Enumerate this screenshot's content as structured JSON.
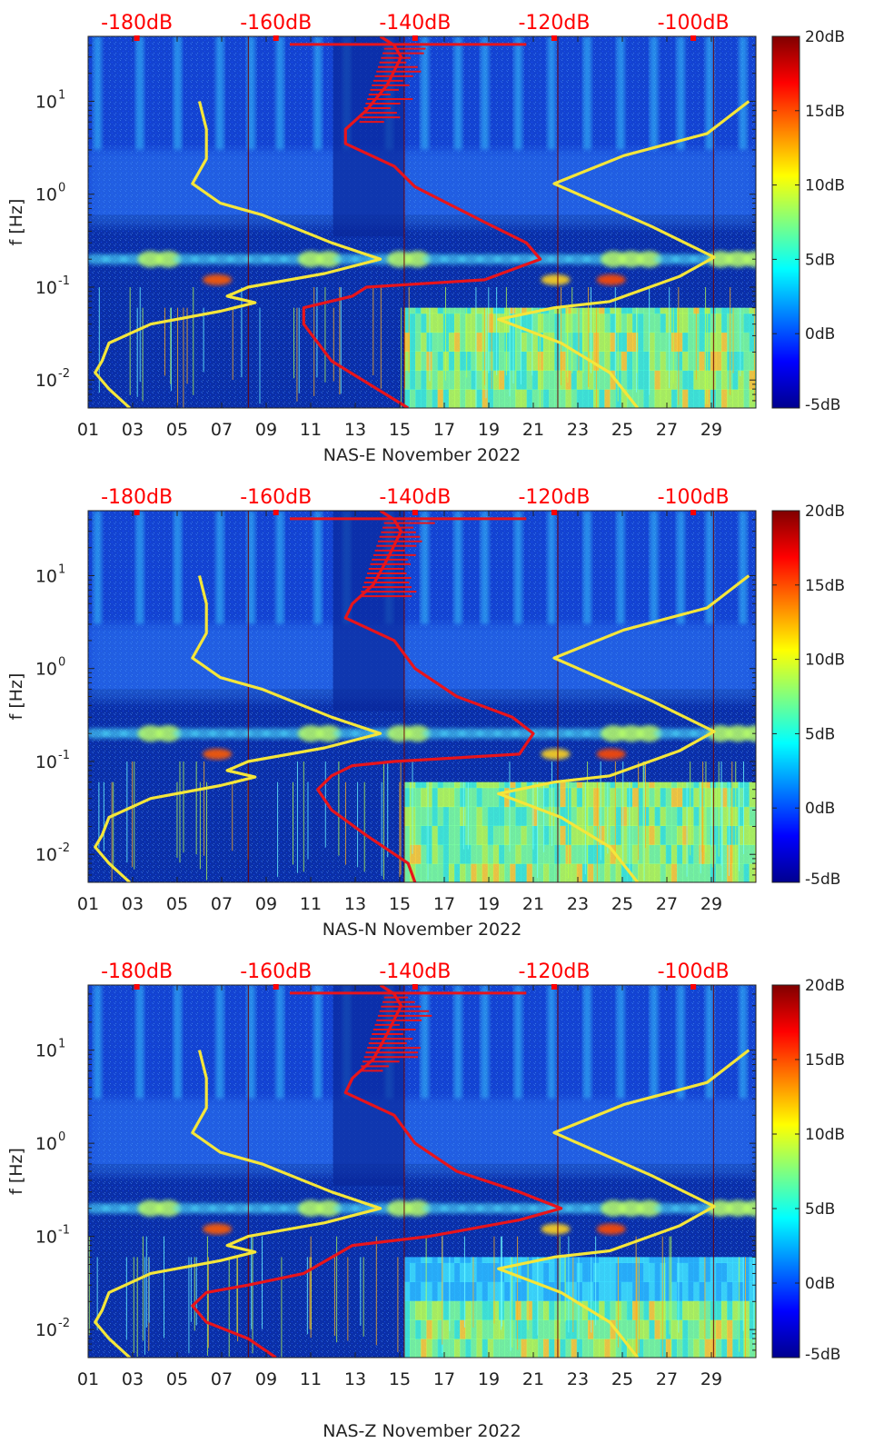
{
  "figure": {
    "colorbar": {
      "tick_labels": [
        "20dB",
        "15dB",
        "10dB",
        "5dB",
        "0dB",
        "-5dB"
      ],
      "range_db": [
        -5,
        20
      ],
      "colormap": "jet"
    },
    "colors": {
      "psd_curve": "#e8141b",
      "noise_model": "#f5e63a",
      "top_axis_text": "#ff0000",
      "background_field": "#0a2fa8"
    }
  },
  "chart_data": [
    {
      "type": "heatmap",
      "xlabel": "NAS-E November 2022",
      "ylabel": "f [Hz]",
      "x_tick_labels": [
        "01",
        "03",
        "05",
        "07",
        "09",
        "11",
        "13",
        "15",
        "17",
        "19",
        "21",
        "23",
        "25",
        "27",
        "29"
      ],
      "x_ticks_day": [
        1,
        3,
        5,
        7,
        9,
        11,
        13,
        15,
        17,
        19,
        21,
        23,
        25,
        27,
        29
      ],
      "xlim_day": [
        1,
        31
      ],
      "y_scale": "log",
      "ylim_hz": [
        0.005,
        50
      ],
      "y_tick_labels": [
        {
          "base": "10",
          "exp": "1",
          "hz": 10
        },
        {
          "base": "10",
          "exp": "0",
          "hz": 1
        },
        {
          "base": "10",
          "exp": "-1",
          "hz": 0.1
        },
        {
          "base": "10",
          "exp": "-2",
          "hz": 0.01
        }
      ],
      "top_axis_labels": [
        "-180dB",
        "-160dB",
        "-140dB",
        "-120dB",
        "-100dB"
      ],
      "top_axis_db": [
        -180,
        -160,
        -140,
        -120,
        -100
      ],
      "top_axis_range_db": [
        -187,
        -91
      ],
      "series": [
        {
          "kind": "model",
          "color": "#f5e63a",
          "points_db_hz": [
            [
              -181,
              0.005
            ],
            [
              -184,
              0.008
            ],
            [
              -186,
              0.012
            ],
            [
              -185,
              0.016
            ],
            [
              -184,
              0.025
            ],
            [
              -178,
              0.04
            ],
            [
              -168,
              0.055
            ],
            [
              -163,
              0.068
            ],
            [
              -167,
              0.08
            ],
            [
              -164,
              0.1
            ],
            [
              -153,
              0.14
            ],
            [
              -145,
              0.2
            ],
            [
              -152,
              0.3
            ],
            [
              -162,
              0.6
            ],
            [
              -168,
              0.8
            ],
            [
              -172,
              1.3
            ],
            [
              -170,
              2.4
            ],
            [
              -170,
              5
            ],
            [
              -171,
              10
            ]
          ]
        },
        {
          "kind": "model",
          "color": "#f5e63a",
          "points_db_hz": [
            [
              -108,
              0.005
            ],
            [
              -112,
              0.012
            ],
            [
              -119,
              0.025
            ],
            [
              -128,
              0.045
            ],
            [
              -120,
              0.06
            ],
            [
              -112,
              0.07
            ],
            [
              -102,
              0.13
            ],
            [
              -97,
              0.21
            ],
            [
              -106,
              0.45
            ],
            [
              -120,
              1.3
            ],
            [
              -110,
              2.6
            ],
            [
              -98,
              4.5
            ],
            [
              -92,
              10
            ]
          ]
        },
        {
          "kind": "psd",
          "color": "#e8141b",
          "points_db_hz": [
            [
              -141,
              0.005
            ],
            [
              -152,
              0.016
            ],
            [
              -156,
              0.04
            ],
            [
              -156,
              0.06
            ],
            [
              -149,
              0.08
            ],
            [
              -147,
              0.1
            ],
            [
              -130,
              0.12
            ],
            [
              -122,
              0.2
            ],
            [
              -124,
              0.3
            ],
            [
              -130,
              0.5
            ],
            [
              -140,
              1.2
            ],
            [
              -143,
              2.0
            ],
            [
              -150,
              3.5
            ],
            [
              -150,
              5
            ],
            [
              -147,
              8
            ],
            [
              -144,
              15
            ],
            [
              -142,
              30
            ],
            [
              -143,
              40
            ],
            [
              -145,
              50
            ]
          ]
        }
      ]
    },
    {
      "type": "heatmap",
      "xlabel": "NAS-N November 2022",
      "ylabel": "f [Hz]",
      "x_tick_labels": [
        "01",
        "03",
        "05",
        "07",
        "09",
        "11",
        "13",
        "15",
        "17",
        "19",
        "21",
        "23",
        "25",
        "27",
        "29"
      ],
      "x_ticks_day": [
        1,
        3,
        5,
        7,
        9,
        11,
        13,
        15,
        17,
        19,
        21,
        23,
        25,
        27,
        29
      ],
      "xlim_day": [
        1,
        31
      ],
      "y_scale": "log",
      "ylim_hz": [
        0.005,
        50
      ],
      "y_tick_labels": [
        {
          "base": "10",
          "exp": "1",
          "hz": 10
        },
        {
          "base": "10",
          "exp": "0",
          "hz": 1
        },
        {
          "base": "10",
          "exp": "-1",
          "hz": 0.1
        },
        {
          "base": "10",
          "exp": "-2",
          "hz": 0.01
        }
      ],
      "top_axis_labels": [
        "-180dB",
        "-160dB",
        "-140dB",
        "-120dB",
        "-100dB"
      ],
      "top_axis_db": [
        -180,
        -160,
        -140,
        -120,
        -100
      ],
      "top_axis_range_db": [
        -187,
        -91
      ],
      "series": [
        {
          "kind": "model",
          "color": "#f5e63a",
          "points_db_hz": [
            [
              -181,
              0.005
            ],
            [
              -184,
              0.008
            ],
            [
              -186,
              0.012
            ],
            [
              -185,
              0.016
            ],
            [
              -184,
              0.025
            ],
            [
              -178,
              0.04
            ],
            [
              -168,
              0.055
            ],
            [
              -163,
              0.068
            ],
            [
              -167,
              0.08
            ],
            [
              -164,
              0.1
            ],
            [
              -153,
              0.14
            ],
            [
              -145,
              0.2
            ],
            [
              -152,
              0.3
            ],
            [
              -162,
              0.6
            ],
            [
              -168,
              0.8
            ],
            [
              -172,
              1.3
            ],
            [
              -170,
              2.4
            ],
            [
              -170,
              5
            ],
            [
              -171,
              10
            ]
          ]
        },
        {
          "kind": "model",
          "color": "#f5e63a",
          "points_db_hz": [
            [
              -108,
              0.005
            ],
            [
              -112,
              0.012
            ],
            [
              -119,
              0.025
            ],
            [
              -128,
              0.045
            ],
            [
              -120,
              0.06
            ],
            [
              -112,
              0.07
            ],
            [
              -102,
              0.13
            ],
            [
              -97,
              0.21
            ],
            [
              -106,
              0.45
            ],
            [
              -120,
              1.3
            ],
            [
              -110,
              2.6
            ],
            [
              -98,
              4.5
            ],
            [
              -92,
              10
            ]
          ]
        },
        {
          "kind": "psd",
          "color": "#e8141b",
          "points_db_hz": [
            [
              -140,
              0.005
            ],
            [
              -141,
              0.008
            ],
            [
              -147,
              0.016
            ],
            [
              -152,
              0.03
            ],
            [
              -154,
              0.05
            ],
            [
              -152,
              0.07
            ],
            [
              -149,
              0.09
            ],
            [
              -143,
              0.1
            ],
            [
              -125,
              0.12
            ],
            [
              -123,
              0.2
            ],
            [
              -126,
              0.3
            ],
            [
              -134,
              0.5
            ],
            [
              -140,
              1.0
            ],
            [
              -143,
              2.0
            ],
            [
              -150,
              3.5
            ],
            [
              -149,
              5
            ],
            [
              -146,
              8
            ],
            [
              -144,
              15
            ],
            [
              -142,
              30
            ],
            [
              -143,
              40
            ],
            [
              -145,
              50
            ]
          ]
        }
      ]
    },
    {
      "type": "heatmap",
      "xlabel": "NAS-Z November 2022",
      "ylabel": "f [Hz]",
      "x_tick_labels": [
        "01",
        "03",
        "05",
        "07",
        "09",
        "11",
        "13",
        "15",
        "17",
        "19",
        "21",
        "23",
        "25",
        "27",
        "29"
      ],
      "x_ticks_day": [
        1,
        3,
        5,
        7,
        9,
        11,
        13,
        15,
        17,
        19,
        21,
        23,
        25,
        27,
        29
      ],
      "xlim_day": [
        1,
        31
      ],
      "y_scale": "log",
      "ylim_hz": [
        0.005,
        50
      ],
      "y_tick_labels": [
        {
          "base": "10",
          "exp": "1",
          "hz": 10
        },
        {
          "base": "10",
          "exp": "0",
          "hz": 1
        },
        {
          "base": "10",
          "exp": "-1",
          "hz": 0.1
        },
        {
          "base": "10",
          "exp": "-2",
          "hz": 0.01
        }
      ],
      "top_axis_labels": [
        "-180dB",
        "-160dB",
        "-140dB",
        "-120dB",
        "-100dB"
      ],
      "top_axis_db": [
        -180,
        -160,
        -140,
        -120,
        -100
      ],
      "top_axis_range_db": [
        -187,
        -91
      ],
      "series": [
        {
          "kind": "model",
          "color": "#f5e63a",
          "points_db_hz": [
            [
              -181,
              0.005
            ],
            [
              -184,
              0.008
            ],
            [
              -186,
              0.012
            ],
            [
              -185,
              0.016
            ],
            [
              -184,
              0.025
            ],
            [
              -178,
              0.04
            ],
            [
              -168,
              0.055
            ],
            [
              -163,
              0.068
            ],
            [
              -167,
              0.08
            ],
            [
              -164,
              0.1
            ],
            [
              -153,
              0.14
            ],
            [
              -145,
              0.2
            ],
            [
              -152,
              0.3
            ],
            [
              -162,
              0.6
            ],
            [
              -168,
              0.8
            ],
            [
              -172,
              1.3
            ],
            [
              -170,
              2.4
            ],
            [
              -170,
              5
            ],
            [
              -171,
              10
            ]
          ]
        },
        {
          "kind": "model",
          "color": "#f5e63a",
          "points_db_hz": [
            [
              -108,
              0.005
            ],
            [
              -112,
              0.012
            ],
            [
              -119,
              0.025
            ],
            [
              -128,
              0.045
            ],
            [
              -120,
              0.06
            ],
            [
              -112,
              0.07
            ],
            [
              -102,
              0.13
            ],
            [
              -97,
              0.21
            ],
            [
              -106,
              0.45
            ],
            [
              -120,
              1.3
            ],
            [
              -110,
              2.6
            ],
            [
              -98,
              4.5
            ],
            [
              -92,
              10
            ]
          ]
        },
        {
          "kind": "psd",
          "color": "#e8141b",
          "points_db_hz": [
            [
              -160,
              0.005
            ],
            [
              -164,
              0.008
            ],
            [
              -170,
              0.012
            ],
            [
              -172,
              0.018
            ],
            [
              -170,
              0.025
            ],
            [
              -164,
              0.03
            ],
            [
              -156,
              0.04
            ],
            [
              -149,
              0.08
            ],
            [
              -138,
              0.1
            ],
            [
              -125,
              0.15
            ],
            [
              -119,
              0.2
            ],
            [
              -125,
              0.3
            ],
            [
              -134,
              0.5
            ],
            [
              -140,
              1.0
            ],
            [
              -143,
              2.0
            ],
            [
              -150,
              3.5
            ],
            [
              -149,
              5
            ],
            [
              -146,
              8
            ],
            [
              -144,
              15
            ],
            [
              -142,
              30
            ],
            [
              -143,
              40
            ],
            [
              -145,
              50
            ]
          ]
        }
      ]
    }
  ]
}
